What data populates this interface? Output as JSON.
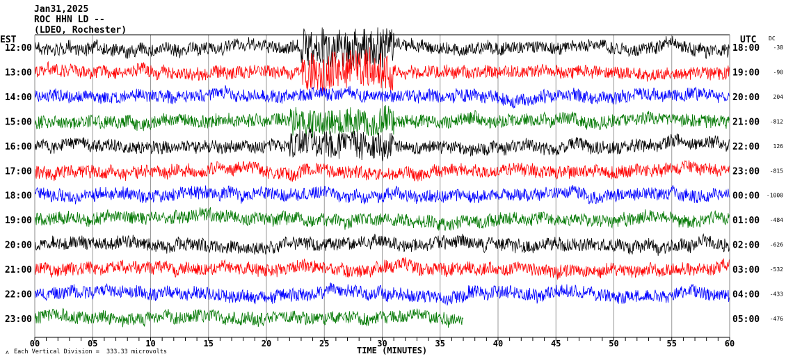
{
  "header": {
    "date": "Jan31,2025",
    "station": "ROC HHN LD --",
    "network": "(LDEO, Rochester)"
  },
  "left_zone": "EST",
  "right_zone": "UTC",
  "dc_header": "DC",
  "footer": {
    "scale_note": "Each Vertical Division =  333.33 microvolts",
    "xlabel": "TIME (MINUTES)"
  },
  "chart_data": {
    "type": "line",
    "subtype": "helicorder",
    "xlabel": "TIME (MINUTES)",
    "xlim": [
      0,
      60
    ],
    "xticks": [
      "00",
      "05",
      "10",
      "15",
      "20",
      "25",
      "30",
      "35",
      "40",
      "45",
      "50",
      "55",
      "60"
    ],
    "colors": [
      "#000000",
      "#ff0000",
      "#0000ff",
      "#007700"
    ],
    "rows": [
      {
        "est": "12:00",
        "utc": "18:00",
        "dc": "-38",
        "color": "#000000",
        "end_minute": 60
      },
      {
        "est": "13:00",
        "utc": "19:00",
        "dc": "-90",
        "color": "#ff0000",
        "end_minute": 60
      },
      {
        "est": "14:00",
        "utc": "20:00",
        "dc": "204",
        "color": "#0000ff",
        "end_minute": 60
      },
      {
        "est": "15:00",
        "utc": "21:00",
        "dc": "-812",
        "color": "#007700",
        "end_minute": 60
      },
      {
        "est": "16:00",
        "utc": "22:00",
        "dc": "126",
        "color": "#000000",
        "end_minute": 60
      },
      {
        "est": "17:00",
        "utc": "23:00",
        "dc": "-815",
        "color": "#ff0000",
        "end_minute": 60
      },
      {
        "est": "18:00",
        "utc": "00:00",
        "dc": "-1000",
        "color": "#0000ff",
        "end_minute": 60
      },
      {
        "est": "19:00",
        "utc": "01:00",
        "dc": "-484",
        "color": "#007700",
        "end_minute": 60
      },
      {
        "est": "20:00",
        "utc": "02:00",
        "dc": "-626",
        "color": "#000000",
        "end_minute": 60
      },
      {
        "est": "21:00",
        "utc": "03:00",
        "dc": "-532",
        "color": "#ff0000",
        "end_minute": 60
      },
      {
        "est": "22:00",
        "utc": "04:00",
        "dc": "-433",
        "color": "#0000ff",
        "end_minute": 60
      },
      {
        "est": "23:00",
        "utc": "05:00",
        "dc": "-476",
        "color": "#007700",
        "end_minute": 37
      }
    ]
  }
}
